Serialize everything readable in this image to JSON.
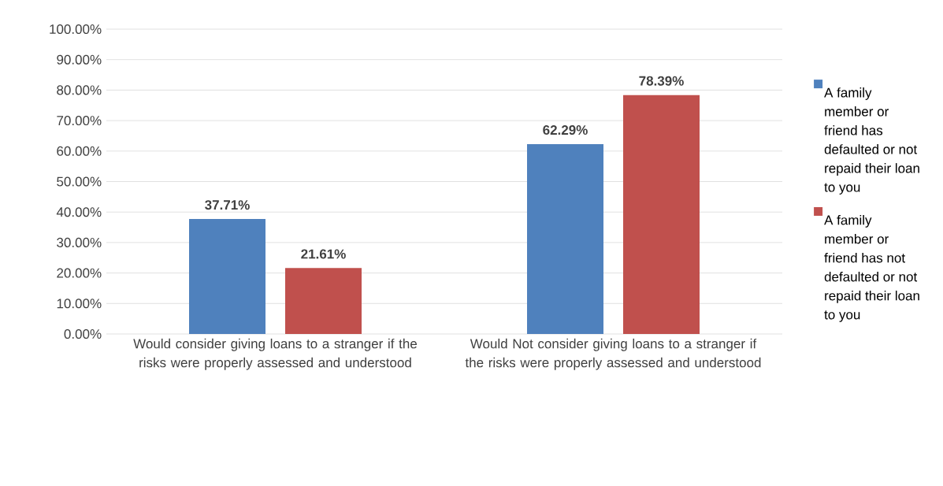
{
  "chart_data": {
    "type": "bar",
    "categories": [
      "Would consider giving loans to a stranger if the risks were properly assessed and understood",
      "Would Not consider giving loans to a stranger if the risks were properly assessed and understood"
    ],
    "series": [
      {
        "name": "A family member or friend has defaulted or not repaid their loan to you",
        "color": "#4f81bd",
        "values": [
          37.71,
          62.29
        ],
        "value_labels": [
          "37.71%",
          "62.29%"
        ]
      },
      {
        "name": "A family member or friend has not defaulted or not repaid their loan to you",
        "color": "#c0504d",
        "values": [
          21.61,
          78.39
        ],
        "value_labels": [
          "21.61%",
          "78.39%"
        ]
      }
    ],
    "ylim": [
      0,
      100
    ],
    "yticks": [
      {
        "value": 0,
        "label": "0.00%"
      },
      {
        "value": 10,
        "label": "10.00%"
      },
      {
        "value": 20,
        "label": "20.00%"
      },
      {
        "value": 30,
        "label": "30.00%"
      },
      {
        "value": 40,
        "label": "40.00%"
      },
      {
        "value": 50,
        "label": "50.00%"
      },
      {
        "value": 60,
        "label": "60.00%"
      },
      {
        "value": 70,
        "label": "70.00%"
      },
      {
        "value": 80,
        "label": "80.00%"
      },
      {
        "value": 90,
        "label": "90.00%"
      },
      {
        "value": 100,
        "label": "100.00%"
      }
    ],
    "grid": "y",
    "legend": "right"
  }
}
